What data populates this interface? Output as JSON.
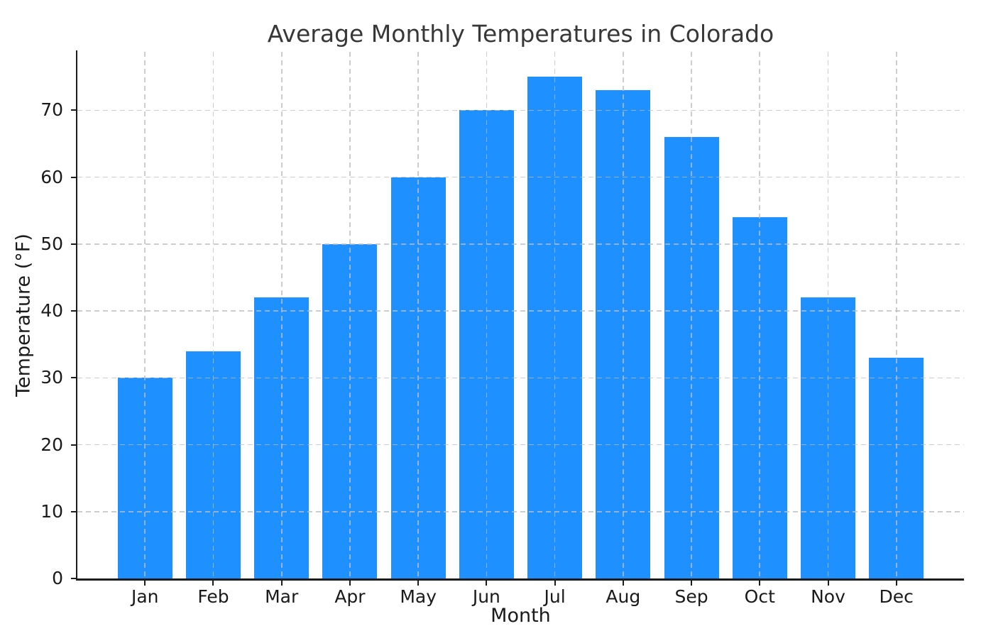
{
  "chart_data": {
    "type": "bar",
    "title": "Average Monthly Temperatures in Colorado",
    "xlabel": "Month",
    "ylabel": "Temperature (°F)",
    "categories": [
      "Jan",
      "Feb",
      "Mar",
      "Apr",
      "May",
      "Jun",
      "Jul",
      "Aug",
      "Sep",
      "Oct",
      "Nov",
      "Dec"
    ],
    "values": [
      30,
      34,
      42,
      50,
      60,
      70,
      75,
      73,
      66,
      54,
      42,
      33
    ],
    "yticks": [
      0,
      10,
      20,
      30,
      40,
      50,
      60,
      70
    ],
    "ylim": [
      0,
      78.75
    ],
    "bar_width_fraction": 0.8,
    "grid": {
      "visible": true,
      "style": "dashed",
      "axes": "both",
      "above_bars": true
    },
    "legend": {
      "visible": false
    },
    "colors": {
      "bar": "#1E90FF",
      "grid": "#bcbcbc",
      "spine": "#1c1c1c",
      "title_text": "#383838",
      "tick_text": "#1a1a1a"
    }
  }
}
